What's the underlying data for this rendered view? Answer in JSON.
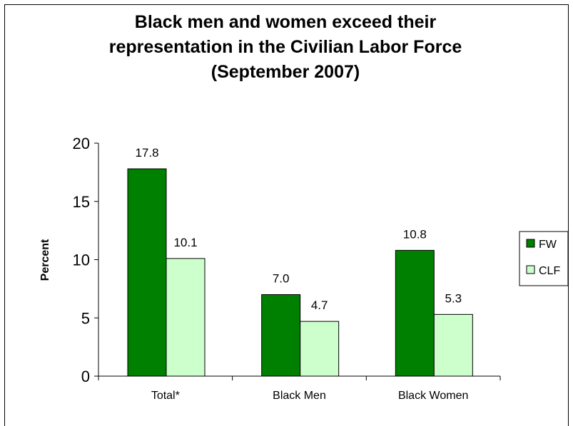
{
  "chart_data": {
    "type": "bar",
    "title_lines": [
      "Black men and women exceed their",
      "representation in the Civilian Labor Force",
      "(September 2007)"
    ],
    "xlabel": "",
    "ylabel": "Percent",
    "categories": [
      "Total*",
      "Black Men",
      "Black Women"
    ],
    "series": [
      {
        "name": "FW",
        "values": [
          17.8,
          7.0,
          10.8
        ],
        "color": "#008000"
      },
      {
        "name": "CLF",
        "values": [
          10.1,
          4.7,
          5.3
        ],
        "color": "#ccffcc"
      }
    ],
    "data_labels": [
      [
        "17.8",
        "7.0",
        "10.8"
      ],
      [
        "10.1",
        "4.7",
        "5.3"
      ]
    ],
    "ylim": [
      0,
      20
    ],
    "yticks": [
      0,
      5,
      10,
      15,
      20
    ],
    "grid": false,
    "legend_position": "right"
  }
}
